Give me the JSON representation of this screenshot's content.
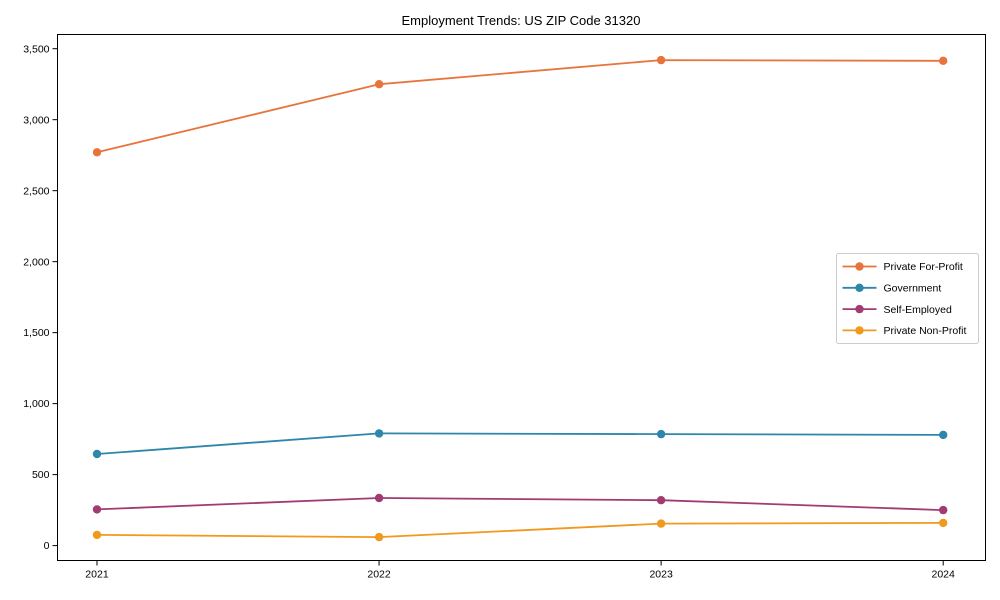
{
  "chart_data": {
    "type": "line",
    "title": "Employment Trends: US ZIP Code 31320",
    "x": [
      2021,
      2022,
      2023,
      2024
    ],
    "x_tick_labels": [
      "2021",
      "2022",
      "2023",
      "2024"
    ],
    "series": [
      {
        "name": "Private For-Profit",
        "color": "#E8743B",
        "values": [
          2770,
          3250,
          3420,
          3415
        ]
      },
      {
        "name": "Government",
        "color": "#2E86AB",
        "values": [
          645,
          790,
          785,
          780
        ]
      },
      {
        "name": "Self-Employed",
        "color": "#A23B72",
        "values": [
          255,
          335,
          320,
          250
        ]
      },
      {
        "name": "Private Non-Profit",
        "color": "#F0991E",
        "values": [
          75,
          60,
          155,
          160
        ]
      }
    ],
    "xlabel": "",
    "ylabel": "",
    "y_ticks": [
      0,
      500,
      1000,
      1500,
      2000,
      2500,
      3000,
      3500
    ],
    "y_tick_labels": [
      "0",
      "500",
      "1,000",
      "1,500",
      "2,000",
      "2,500",
      "3,000",
      "3,500"
    ],
    "ylim": [
      -105,
      3600
    ],
    "xlim": [
      2020.86,
      2024.15
    ],
    "grid": false,
    "legend_position": "center-right",
    "marker": "circle",
    "colors": {
      "axis": "#000000",
      "legend_border": "#cccccc",
      "background": "#ffffff"
    }
  }
}
